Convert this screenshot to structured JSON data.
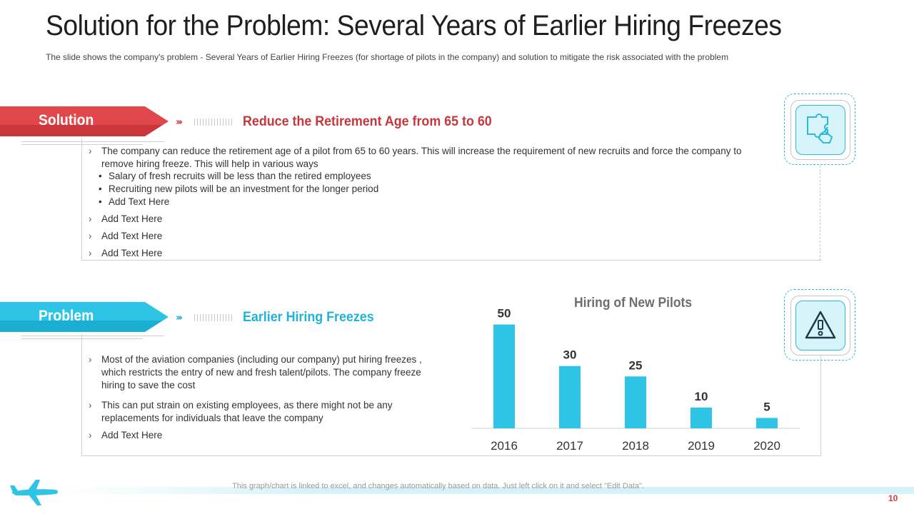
{
  "header": {
    "title": "Solution for the Problem: Several Years of Earlier Hiring Freezes",
    "subtitle": "The slide shows the company's problem - Several Years of Earlier Hiring Freezes (for shortage of pilots in the company) and solution to mitigate the risk associated with the problem"
  },
  "solution": {
    "label": "Solution",
    "heading": "Reduce the Retirement Age from 65 to 60",
    "icon": "puzzle-hand-icon",
    "points": [
      "The company can reduce the retirement age of a pilot from 65 to 60 years. This will increase the requirement of new recruits and force the company to remove hiring freeze. This will help in various ways",
      "Add Text Here",
      "Add Text Here",
      "Add Text Here"
    ],
    "sub_points": [
      "Salary of fresh recruits will be less than the retired employees",
      "Recruiting new pilots will be an investment for the longer period",
      "Add Text Here"
    ]
  },
  "problem": {
    "label": "Problem",
    "heading": "Earlier Hiring Freezes",
    "icon": "warning-icon",
    "points": [
      "Most of the aviation companies (including our company) put hiring freezes , which restricts the entry of new and fresh talent/pilots. The company freeze hiring to save the cost",
      "This can put strain on existing employees, as there might not be any replacements for individuals that leave the company",
      "Add Text Here"
    ]
  },
  "chart_data": {
    "type": "bar",
    "title": "Hiring of New Pilots",
    "categories": [
      "2016",
      "2017",
      "2018",
      "2019",
      "2020"
    ],
    "values": [
      50,
      30,
      25,
      10,
      5
    ],
    "xlabel": "",
    "ylabel": "",
    "ylim": [
      0,
      55
    ],
    "color": "#2ec4e6",
    "grid": false
  },
  "footer": {
    "note": "This graph/chart is linked to excel, and changes automatically based on data. Just left click on it and select \"Edit Data\".",
    "page": "10"
  },
  "colors": {
    "red": "#e0474a",
    "blue": "#2ec4e6"
  }
}
